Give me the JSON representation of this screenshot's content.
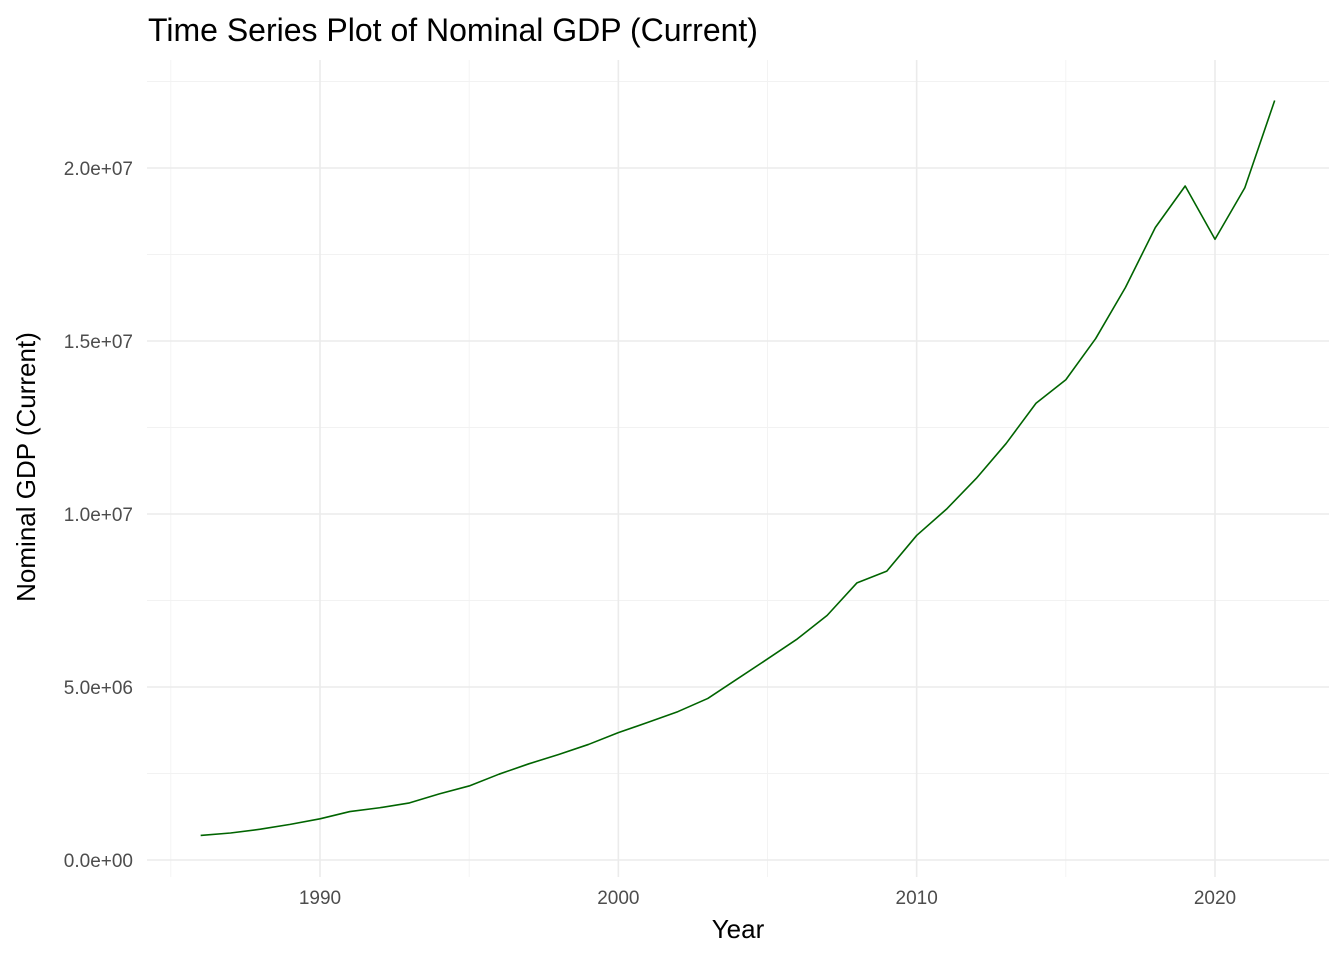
{
  "chart_data": {
    "type": "line",
    "title": "Time Series Plot of Nominal GDP (Current)",
    "xlabel": "Year",
    "ylabel": "Nominal GDP (Current)",
    "xlim": [
      1985.2,
      1982.9
    ],
    "ylim": [
      -400000,
      22900000
    ],
    "x_ticks": [
      1990,
      2000,
      2010,
      2020
    ],
    "x_tick_labels": [
      "1990",
      "2000",
      "2010",
      "2020"
    ],
    "y_ticks": [
      0,
      5000000,
      10000000,
      15000000,
      20000000
    ],
    "y_tick_labels": [
      "0.0e+00",
      "5.0e+06",
      "1.0e+07",
      "1.5e+07",
      "2.0e+07"
    ],
    "grid": true,
    "legend": "none",
    "series": [
      {
        "color": "#006400",
        "x": [
          1986,
          1987,
          1988,
          1989,
          1990,
          1991,
          1992,
          1993,
          1994,
          1995,
          1996,
          1997,
          1998,
          1999,
          2000,
          2001,
          2002,
          2003,
          2004,
          2005,
          2006,
          2007,
          2008,
          2009,
          2010,
          2011,
          2012,
          2013,
          2014,
          2015,
          2016,
          2017,
          2018,
          2019,
          2020,
          2021,
          2022
        ],
        "y": [
          710000,
          780000,
          890000,
          1030000,
          1190000,
          1400000,
          1510000,
          1650000,
          1910000,
          2140000,
          2480000,
          2780000,
          3050000,
          3340000,
          3680000,
          3980000,
          4290000,
          4670000,
          5240000,
          5810000,
          6390000,
          7070000,
          8010000,
          8350000,
          9380000,
          10140000,
          11030000,
          12040000,
          13200000,
          13880000,
          15070000,
          16550000,
          18280000,
          19480000,
          17940000,
          19430000,
          21950000
        ]
      }
    ]
  }
}
